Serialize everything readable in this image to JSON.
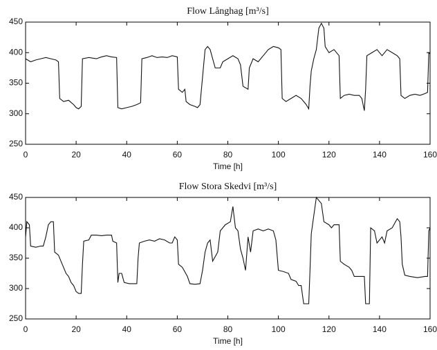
{
  "chart_data": [
    {
      "type": "line",
      "title": "Flow  Långhag [m³/s]",
      "x_label": "Time [h]",
      "xlim": [
        0,
        160
      ],
      "xticks": [
        0,
        20,
        40,
        60,
        80,
        100,
        120,
        140,
        160
      ],
      "ylim": [
        250,
        450
      ],
      "yticks": [
        250,
        300,
        350,
        400,
        450
      ],
      "color": "#111111",
      "x": [
        0,
        2,
        4,
        6,
        8,
        10,
        12,
        13,
        13.5,
        15,
        17,
        19,
        20,
        21,
        22,
        22.5,
        25,
        28,
        30,
        32,
        34,
        36,
        36.5,
        38,
        40,
        42,
        44,
        45.5,
        46,
        48,
        50,
        52,
        54,
        56,
        58,
        60,
        60.5,
        62,
        63,
        63.5,
        65,
        67,
        68,
        69,
        70,
        71,
        72,
        73,
        74,
        75,
        77,
        78,
        80,
        82,
        84,
        85,
        86,
        88,
        88.5,
        90,
        92,
        94,
        96,
        98,
        100,
        101,
        101.5,
        103,
        105,
        107,
        109,
        111,
        112,
        112.5,
        113,
        114,
        115,
        116,
        117,
        118,
        118.5,
        120,
        122,
        124,
        124.5,
        126,
        128,
        130,
        132,
        133,
        134,
        134.5,
        135,
        137,
        139,
        141,
        143,
        145,
        147,
        148,
        148.5,
        150,
        152,
        154,
        156,
        158,
        159,
        159.5,
        160
      ],
      "values": [
        390,
        385,
        388,
        390,
        392,
        390,
        388,
        385,
        325,
        320,
        322,
        315,
        310,
        308,
        312,
        390,
        392,
        390,
        393,
        395,
        393,
        392,
        310,
        308,
        310,
        312,
        315,
        318,
        390,
        392,
        395,
        392,
        393,
        392,
        395,
        393,
        340,
        335,
        340,
        320,
        315,
        312,
        310,
        315,
        360,
        405,
        410,
        405,
        390,
        375,
        375,
        385,
        390,
        395,
        390,
        380,
        345,
        340,
        375,
        390,
        385,
        395,
        405,
        410,
        408,
        405,
        325,
        320,
        325,
        330,
        325,
        315,
        308,
        345,
        370,
        390,
        405,
        440,
        448,
        440,
        410,
        400,
        405,
        395,
        325,
        330,
        332,
        330,
        330,
        325,
        305,
        340,
        395,
        400,
        405,
        395,
        405,
        400,
        395,
        390,
        330,
        325,
        330,
        332,
        330,
        333,
        335,
        400,
        398
      ]
    },
    {
      "type": "line",
      "title": "Flow  Stora Skedvi [m³/s]",
      "x_label": "Time [h]",
      "xlim": [
        0,
        160
      ],
      "xticks": [
        0,
        20,
        40,
        60,
        80,
        100,
        120,
        140,
        160
      ],
      "ylim": [
        250,
        450
      ],
      "yticks": [
        250,
        300,
        350,
        400,
        450
      ],
      "color": "#111111",
      "x": [
        0,
        0.5,
        1.5,
        2,
        4,
        6,
        7,
        8,
        9,
        10,
        11,
        11.5,
        13,
        14,
        15,
        16,
        17,
        18,
        19,
        20,
        21,
        22,
        22.5,
        23,
        25,
        26,
        28,
        30,
        32,
        34,
        34.5,
        36,
        36.5,
        37,
        38,
        39,
        41,
        43,
        44,
        44.5,
        45,
        47,
        49,
        51,
        53,
        55,
        57,
        58,
        59,
        60,
        60.5,
        62,
        64,
        65,
        67,
        69,
        70,
        71,
        72,
        73,
        74,
        76,
        77,
        79,
        81,
        82,
        83,
        84,
        85,
        86,
        87,
        88,
        89,
        90,
        92,
        94,
        96,
        98,
        99,
        100,
        102,
        104,
        105,
        107,
        108,
        109,
        110,
        112,
        112.5,
        113,
        114,
        115,
        117,
        118,
        120,
        121,
        122,
        124,
        124.5,
        126,
        128,
        129,
        130,
        132,
        134,
        134.5,
        136,
        136.5,
        138,
        139,
        141,
        142,
        143,
        145,
        147,
        148,
        148.5,
        149,
        150,
        152,
        155,
        158,
        159,
        159.5,
        160
      ],
      "values": [
        385,
        410,
        405,
        370,
        368,
        370,
        370,
        385,
        405,
        410,
        410,
        360,
        355,
        345,
        335,
        325,
        320,
        310,
        305,
        295,
        292,
        292,
        340,
        378,
        380,
        388,
        388,
        387,
        388,
        388,
        378,
        375,
        310,
        325,
        325,
        310,
        308,
        308,
        308,
        350,
        375,
        378,
        380,
        378,
        382,
        380,
        375,
        375,
        385,
        380,
        340,
        335,
        320,
        308,
        307,
        308,
        330,
        360,
        375,
        380,
        345,
        360,
        395,
        405,
        410,
        435,
        400,
        395,
        365,
        350,
        330,
        385,
        360,
        395,
        398,
        395,
        398,
        395,
        380,
        330,
        328,
        325,
        315,
        312,
        305,
        305,
        275,
        275,
        330,
        390,
        420,
        450,
        440,
        410,
        405,
        400,
        405,
        405,
        345,
        340,
        335,
        330,
        320,
        320,
        320,
        275,
        275,
        400,
        395,
        375,
        385,
        375,
        395,
        400,
        415,
        410,
        385,
        340,
        322,
        320,
        318,
        320,
        320,
        395,
        400
      ]
    }
  ]
}
